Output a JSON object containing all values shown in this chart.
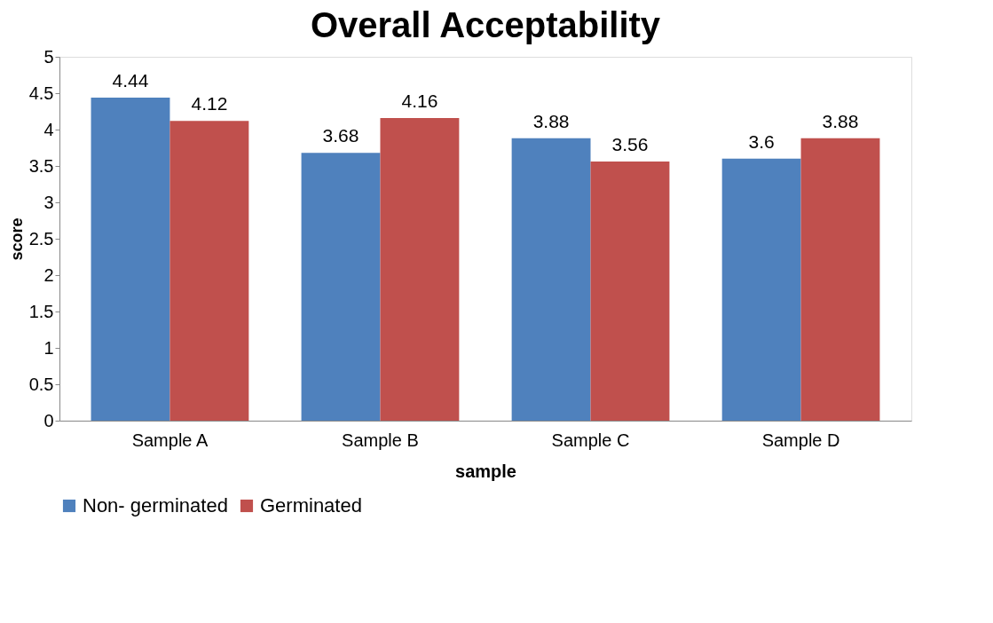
{
  "chart_data": {
    "type": "bar",
    "title": "Overall Acceptability",
    "xlabel": "sample",
    "ylabel": "score",
    "categories": [
      "Sample A",
      "Sample B",
      "Sample C",
      "Sample D"
    ],
    "series": [
      {
        "name": "Non- germinated",
        "color": "#4f81bd",
        "values": [
          4.44,
          3.68,
          3.88,
          3.6
        ]
      },
      {
        "name": "Germinated",
        "color": "#c0504d",
        "values": [
          4.12,
          4.16,
          3.56,
          3.88
        ]
      }
    ],
    "ylim": [
      0,
      5
    ],
    "yticks": [
      0,
      0.5,
      1,
      1.5,
      2,
      2.5,
      3,
      3.5,
      4,
      4.5,
      5
    ],
    "grid": false,
    "legend": "bottom",
    "data_labels": true
  }
}
